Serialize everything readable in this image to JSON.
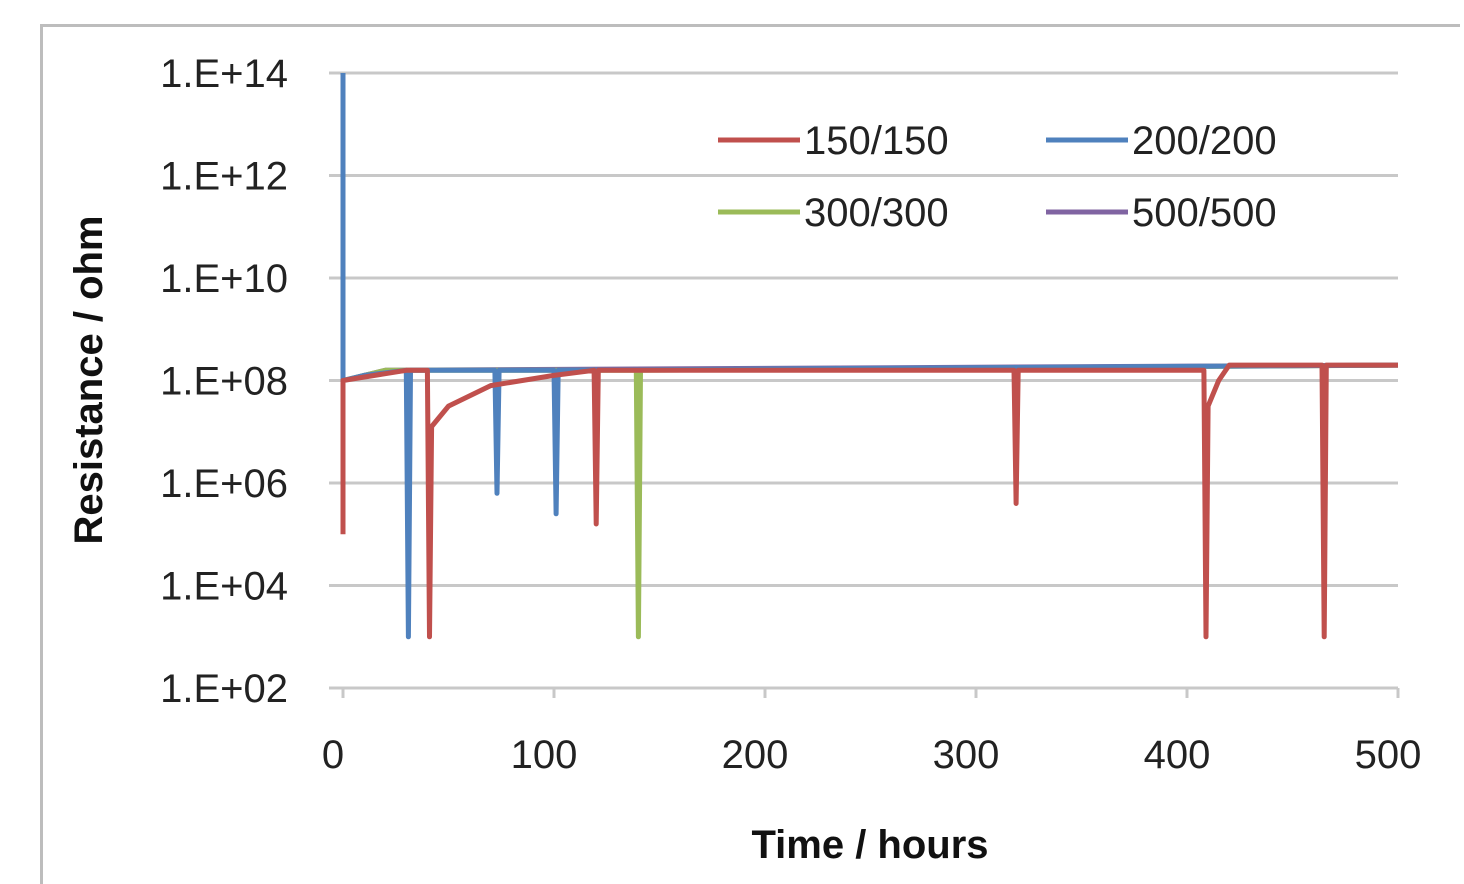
{
  "chart_data": {
    "type": "line",
    "title": "",
    "xlabel": "Time / hours",
    "ylabel": "Resistance / ohm",
    "x_ticks": [
      "0",
      "100",
      "200",
      "300",
      "400",
      "500"
    ],
    "y_ticks": [
      "1.E+02",
      "1.E+04",
      "1.E+06",
      "1.E+08",
      "1.E+10",
      "1.E+12",
      "1.E+14"
    ],
    "xlim": [
      0,
      500
    ],
    "ylim_exponent": [
      2,
      14
    ],
    "y_scale": "log",
    "grid": "horizontal",
    "legend_position": "top-right",
    "series": [
      {
        "name": "150/150",
        "color": "#c0504d",
        "points": [
          [
            0,
            5.0
          ],
          [
            0,
            8
          ],
          [
            30,
            8.2
          ],
          [
            40,
            8.2
          ],
          [
            41,
            3
          ],
          [
            42,
            7.1
          ],
          [
            50,
            7.5
          ],
          [
            70,
            7.9
          ],
          [
            100,
            8.1
          ],
          [
            119,
            8.2
          ],
          [
            120,
            5.2
          ],
          [
            121,
            8.2
          ],
          [
            318,
            8.2
          ],
          [
            319,
            5.6
          ],
          [
            320,
            8.2
          ],
          [
            408,
            8.2
          ],
          [
            409,
            3
          ],
          [
            410,
            7.5
          ],
          [
            415,
            8
          ],
          [
            420,
            8.3
          ],
          [
            464,
            8.3
          ],
          [
            465,
            3
          ],
          [
            466,
            8.3
          ],
          [
            500,
            8.3
          ]
        ]
      },
      {
        "name": "200/200",
        "color": "#4f81bd",
        "points": [
          [
            0,
            14
          ],
          [
            0,
            8
          ],
          [
            10,
            8.1
          ],
          [
            30,
            8.2
          ],
          [
            31,
            3
          ],
          [
            32,
            8.2
          ],
          [
            72,
            8.2
          ],
          [
            73,
            5.8
          ],
          [
            74,
            8.2
          ],
          [
            100,
            8.2
          ],
          [
            101,
            5.4
          ],
          [
            102,
            8.2
          ],
          [
            500,
            8.3
          ]
        ]
      },
      {
        "name": "300/300",
        "color": "#9bbb59",
        "points": [
          [
            0,
            8
          ],
          [
            20,
            8.2
          ],
          [
            139,
            8.2
          ],
          [
            140,
            3
          ],
          [
            141,
            8.2
          ],
          [
            500,
            8.3
          ]
        ]
      },
      {
        "name": "500/500",
        "color": "#8064a2",
        "points": [
          [
            0,
            8
          ],
          [
            20,
            8.2
          ],
          [
            500,
            8.3
          ]
        ]
      }
    ]
  }
}
